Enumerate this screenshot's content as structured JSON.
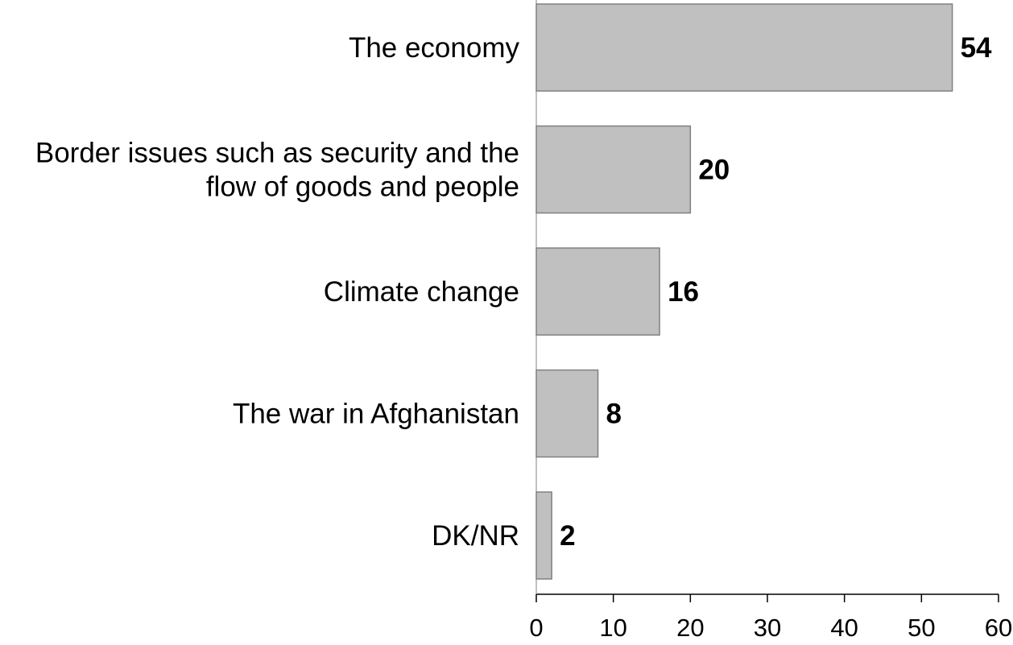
{
  "chart_data": {
    "type": "bar",
    "orientation": "horizontal",
    "categories": [
      [
        "The economy"
      ],
      [
        "Border issues such as security and the",
        "flow of goods and people"
      ],
      [
        "Climate change"
      ],
      [
        "The war in Afghanistan"
      ],
      [
        "DK/NR"
      ]
    ],
    "values": [
      54,
      20,
      16,
      8,
      2
    ],
    "value_labels": [
      "54",
      "20",
      "16",
      "8",
      "2"
    ],
    "xlim": [
      0,
      60
    ],
    "xticks": [
      0,
      10,
      20,
      30,
      40,
      50,
      60
    ],
    "xtick_labels": [
      "0",
      "10",
      "20",
      "30",
      "40",
      "50",
      "60"
    ],
    "title": "",
    "xlabel": "",
    "ylabel": "",
    "grid": false,
    "legend": "none",
    "colors": {
      "bar_fill": "#c0c0c0",
      "bar_stroke": "#808080",
      "axis": "#000000",
      "text": "#000000"
    }
  }
}
